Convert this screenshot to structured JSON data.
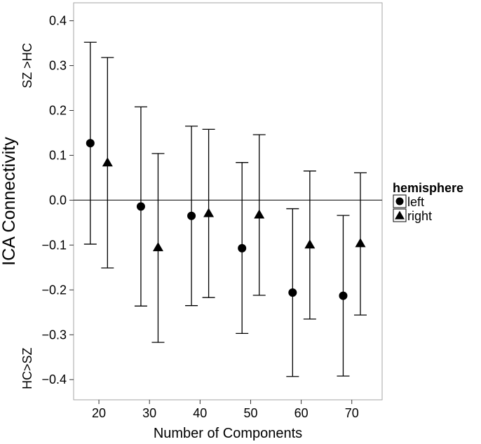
{
  "chart_data": {
    "type": "scatter",
    "title": "",
    "xlabel": "Number of Components",
    "ylabel": "ICA Connectivity",
    "annotations": {
      "top": "SZ >HC",
      "bottom": "HC>SZ"
    },
    "xlim": [
      15,
      76
    ],
    "ylim": [
      -0.445,
      0.44
    ],
    "x_ticks": [
      20,
      30,
      40,
      50,
      60,
      70
    ],
    "y_ticks": [
      -0.4,
      -0.3,
      -0.2,
      -0.1,
      0.0,
      0.1,
      0.2,
      0.3,
      0.4
    ],
    "y_tick_labels": [
      "−0.4",
      "−0.3",
      "−0.2",
      "−0.1",
      "0.0",
      "0.1",
      "0.2",
      "0.3",
      "0.4"
    ],
    "hline": 0,
    "grid": false,
    "legend": {
      "title": "hemisphere",
      "placement": "right"
    },
    "series": [
      {
        "name": "left",
        "marker": "circle",
        "points": [
          {
            "x": 18.3,
            "y": 0.127,
            "ymin": -0.098,
            "ymax": 0.352
          },
          {
            "x": 28.3,
            "y": -0.014,
            "ymin": -0.236,
            "ymax": 0.208
          },
          {
            "x": 38.3,
            "y": -0.035,
            "ymin": -0.235,
            "ymax": 0.165
          },
          {
            "x": 48.3,
            "y": -0.107,
            "ymin": -0.297,
            "ymax": 0.084
          },
          {
            "x": 58.3,
            "y": -0.206,
            "ymin": -0.393,
            "ymax": -0.019
          },
          {
            "x": 68.3,
            "y": -0.213,
            "ymin": -0.392,
            "ymax": -0.034
          }
        ]
      },
      {
        "name": "right",
        "marker": "triangle",
        "points": [
          {
            "x": 21.7,
            "y": 0.083,
            "ymin": -0.151,
            "ymax": 0.318
          },
          {
            "x": 31.7,
            "y": -0.106,
            "ymin": -0.317,
            "ymax": 0.104
          },
          {
            "x": 41.7,
            "y": -0.03,
            "ymin": -0.217,
            "ymax": 0.158
          },
          {
            "x": 51.7,
            "y": -0.033,
            "ymin": -0.212,
            "ymax": 0.146
          },
          {
            "x": 61.7,
            "y": -0.1,
            "ymin": -0.265,
            "ymax": 0.065
          },
          {
            "x": 71.7,
            "y": -0.097,
            "ymin": -0.256,
            "ymax": 0.061
          }
        ]
      }
    ]
  }
}
